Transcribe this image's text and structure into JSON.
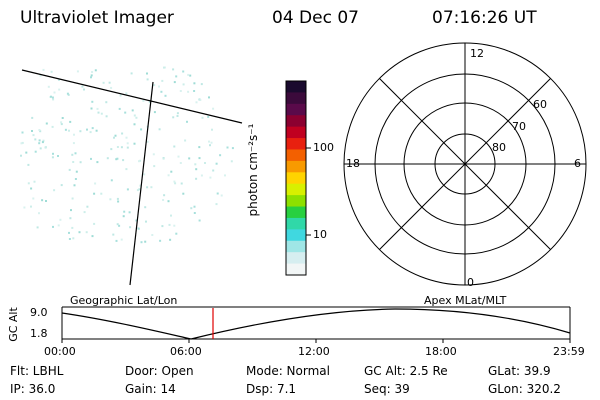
{
  "header": {
    "instrument": "Ultraviolet Imager",
    "date": "04 Dec 07",
    "time": "07:16:26 UT"
  },
  "colorbar": {
    "units_label": "photon cm⁻²s⁻¹",
    "tick_labels": [
      "100",
      "10"
    ],
    "colors": [
      "#1a0a2e",
      "#3b0a3b",
      "#5a0a4a",
      "#8b0030",
      "#c00020",
      "#e8200f",
      "#f36000",
      "#f89a00",
      "#ffd400",
      "#d8f000",
      "#8ee000",
      "#28d040",
      "#30d8a8",
      "#40d8e0",
      "#9fe6e6",
      "#d6eef0",
      "#f2f6f6"
    ]
  },
  "polar": {
    "mlt_labels": {
      "top": "12",
      "bottom": "0",
      "left": "18",
      "right": "6"
    },
    "lat_labels": [
      "60",
      "70",
      "80"
    ]
  },
  "timeline": {
    "left_label": "Geographic Lat/Lon",
    "right_label": "Apex MLat/MLT",
    "y_axis_label": "GC Alt",
    "y_ticks": [
      "9.0",
      "1.8"
    ],
    "x_ticks": [
      "00:00",
      "06:00",
      "12:00",
      "18:00",
      "23:59"
    ],
    "marker_color": "#e00000"
  },
  "info": {
    "flt": "Flt: LBHL",
    "door": "Door: Open",
    "mode": "Mode: Normal",
    "gc_alt": "GC Alt: 2.5 Re",
    "glat": "GLat:  39.9",
    "ip": "IP: 36.0",
    "gain": "Gain: 14",
    "dsp": "Dsp:     7.1",
    "seq": "Seq: 39",
    "glon": "GLon: 320.2"
  }
}
